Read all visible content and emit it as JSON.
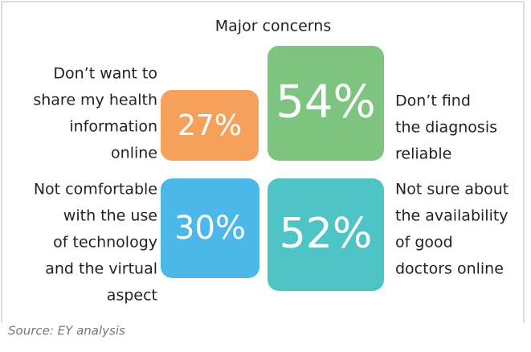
{
  "title": "Major concerns",
  "items": [
    {
      "value": "27%",
      "label": [
        "Don’t want to",
        "share my health",
        "information",
        "online"
      ]
    },
    {
      "value": "54%",
      "label": [
        "Don’t find",
        "the diagnosis",
        "reliable"
      ]
    },
    {
      "value": "30%",
      "label": [
        "Not comfortable",
        "with the use",
        "of technology",
        "and the virtual",
        "aspect"
      ]
    },
    {
      "value": "52%",
      "label": [
        "Not sure about",
        "the availability",
        "of good",
        "doctors online"
      ]
    }
  ],
  "source": "Source: EY analysis"
}
